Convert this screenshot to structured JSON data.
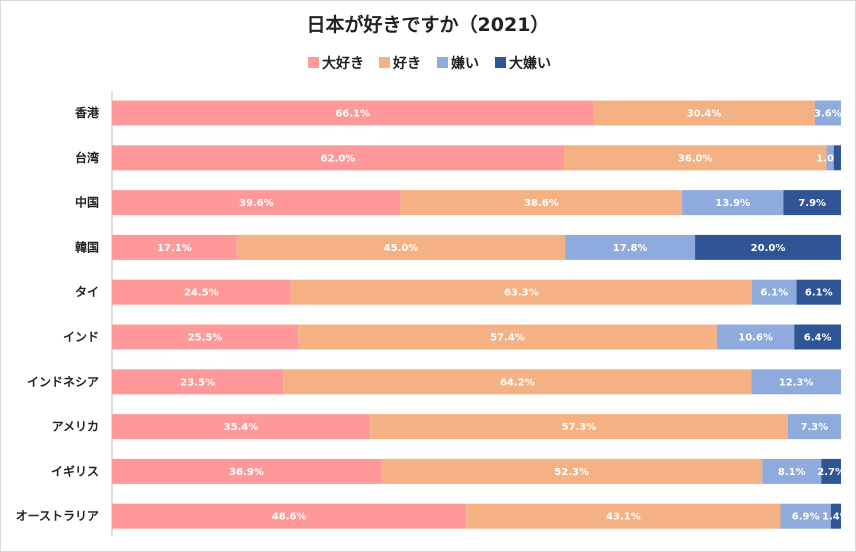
{
  "chart_data": {
    "type": "bar",
    "orientation": "horizontal",
    "stacked": "percent",
    "title": "日本が好きですか（2021）",
    "legend_position": "top",
    "grid": false,
    "xlim": [
      0,
      100
    ],
    "categories": [
      "香港",
      "台湾",
      "中国",
      "韓国",
      "タイ",
      "インド",
      "インドネシア",
      "アメリカ",
      "イギリス",
      "オーストラリア"
    ],
    "series": [
      {
        "name": "大好き",
        "color": "#FF9999",
        "values": [
          66.1,
          62.0,
          39.6,
          17.1,
          24.5,
          25.5,
          23.5,
          35.4,
          36.9,
          48.6
        ],
        "labels": [
          "66.1%",
          "62.0%",
          "39.6%",
          "17.1%",
          "24.5%",
          "25.5%",
          "23.5%",
          "35.4%",
          "36.9%",
          "48.6%"
        ]
      },
      {
        "name": "好き",
        "color": "#F4B183",
        "values": [
          30.4,
          36.0,
          38.6,
          45.0,
          63.3,
          57.4,
          64.2,
          57.3,
          52.3,
          43.1
        ],
        "labels": [
          "30.4%",
          "36.0%",
          "38.6%",
          "45.0%",
          "63.3%",
          "57.4%",
          "64.2%",
          "57.3%",
          "52.3%",
          "43.1%"
        ]
      },
      {
        "name": "嫌い",
        "color": "#8FAADC",
        "values": [
          3.6,
          1.0,
          13.9,
          17.8,
          6.1,
          10.6,
          12.3,
          7.3,
          8.1,
          6.9
        ],
        "labels": [
          "3.6%",
          "1.0%",
          "13.9%",
          "17.8%",
          "6.1%",
          "10.6%",
          "12.3%",
          "7.3%",
          "8.1%",
          "6.9%"
        ]
      },
      {
        "name": "大嫌い",
        "color": "#2F5597",
        "values": [
          0,
          1.0,
          7.9,
          20.0,
          6.1,
          6.4,
          0,
          0,
          2.7,
          1.4
        ],
        "labels": [
          "",
          "",
          "7.9%",
          "20.0%",
          "6.1%",
          "6.4%",
          "",
          "",
          "2.7%",
          "1.4%"
        ]
      }
    ]
  }
}
